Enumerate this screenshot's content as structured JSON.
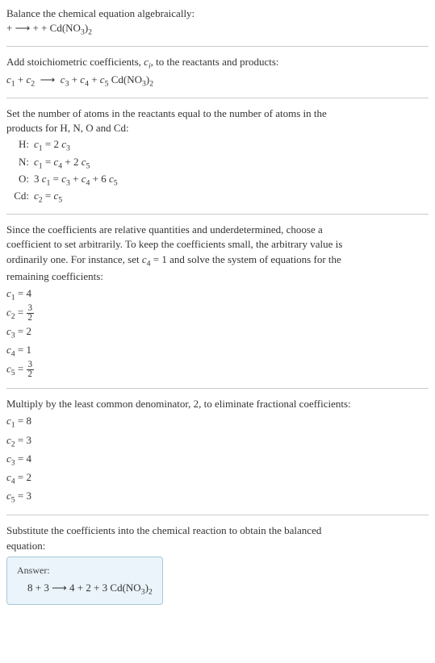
{
  "section1": {
    "line1": "Balance the chemical equation algebraically:",
    "line2_prefix": " + ",
    "arrow": "⟶",
    "line2_suffix": " + + Cd(NO",
    "sub3": "3",
    "paren": ")",
    "sub2": "2"
  },
  "section2": {
    "line1_a": "Add stoichiometric coefficients, ",
    "ci_c": "c",
    "ci_i": "i",
    "line1_b": ", to the reactants and products:",
    "c1": "c",
    "n1": "1",
    "plus": " + ",
    "c2": "c",
    "n2": "2",
    "arrow": "⟶",
    "c3": "c",
    "n3": "3",
    "c4": "c",
    "n4": "4",
    "c5": "c",
    "n5": "5",
    "compound": " Cd(NO",
    "sub3": "3",
    "paren": ")",
    "sub2": "2"
  },
  "section3": {
    "intro1": "Set the number of atoms in the reactants equal to the number of atoms in the",
    "intro2": "products for H, N, O and Cd:",
    "rows": [
      {
        "elem": "H:",
        "lhs_c": "c",
        "lhs_n": "1",
        "eq": " = 2 ",
        "rhs_c": "c",
        "rhs_n": "3"
      },
      {
        "elem": "N:",
        "lhs_c": "c",
        "lhs_n": "1",
        "eq": " = ",
        "mid_c": "c",
        "mid_n": "4",
        "plus": " + 2 ",
        "rhs_c": "c",
        "rhs_n": "5"
      },
      {
        "elem": "O:",
        "pre": "3 ",
        "lhs_c": "c",
        "lhs_n": "1",
        "eq": " = ",
        "t1_c": "c",
        "t1_n": "3",
        "p1": " + ",
        "t2_c": "c",
        "t2_n": "4",
        "p2": " + 6 ",
        "t3_c": "c",
        "t3_n": "5"
      },
      {
        "elem": "Cd:",
        "lhs_c": "c",
        "lhs_n": "2",
        "eq": " = ",
        "rhs_c": "c",
        "rhs_n": "5"
      }
    ]
  },
  "section4": {
    "p1": "Since the coefficients are relative quantities and underdetermined, choose a",
    "p2": "coefficient to set arbitrarily. To keep the coefficients small, the arbitrary value is",
    "p3a": "ordinarily one. For instance, set ",
    "p3_c": "c",
    "p3_n": "4",
    "p3b": " = 1 and solve the system of equations for the",
    "p4": "remaining coefficients:",
    "coefs": [
      {
        "c": "c",
        "n": "1",
        "eq": " = ",
        "val": "4"
      },
      {
        "c": "c",
        "n": "2",
        "eq": " = ",
        "frac_num": "3",
        "frac_den": "2"
      },
      {
        "c": "c",
        "n": "3",
        "eq": " = ",
        "val": "2"
      },
      {
        "c": "c",
        "n": "4",
        "eq": " = ",
        "val": "1"
      },
      {
        "c": "c",
        "n": "5",
        "eq": " = ",
        "frac_num": "3",
        "frac_den": "2"
      }
    ]
  },
  "section5": {
    "intro": "Multiply by the least common denominator, 2, to eliminate fractional coefficients:",
    "coefs": [
      {
        "c": "c",
        "n": "1",
        "eq": " = ",
        "val": "8"
      },
      {
        "c": "c",
        "n": "2",
        "eq": " = ",
        "val": "3"
      },
      {
        "c": "c",
        "n": "3",
        "eq": " = ",
        "val": "4"
      },
      {
        "c": "c",
        "n": "4",
        "eq": " = ",
        "val": "2"
      },
      {
        "c": "c",
        "n": "5",
        "eq": " = ",
        "val": "3"
      }
    ]
  },
  "section6": {
    "p1": "Substitute the coefficients into the chemical reaction to obtain the balanced",
    "p2": "equation:",
    "answer_label": "Answer:",
    "eq_a": "8 ",
    "plus1": " + 3 ",
    "arrow": " ⟶ ",
    "eq_b": "4 ",
    "plus2": " + 2 ",
    "plus3": " + 3 Cd(NO",
    "sub3": "3",
    "paren": ")",
    "sub2": "2"
  }
}
